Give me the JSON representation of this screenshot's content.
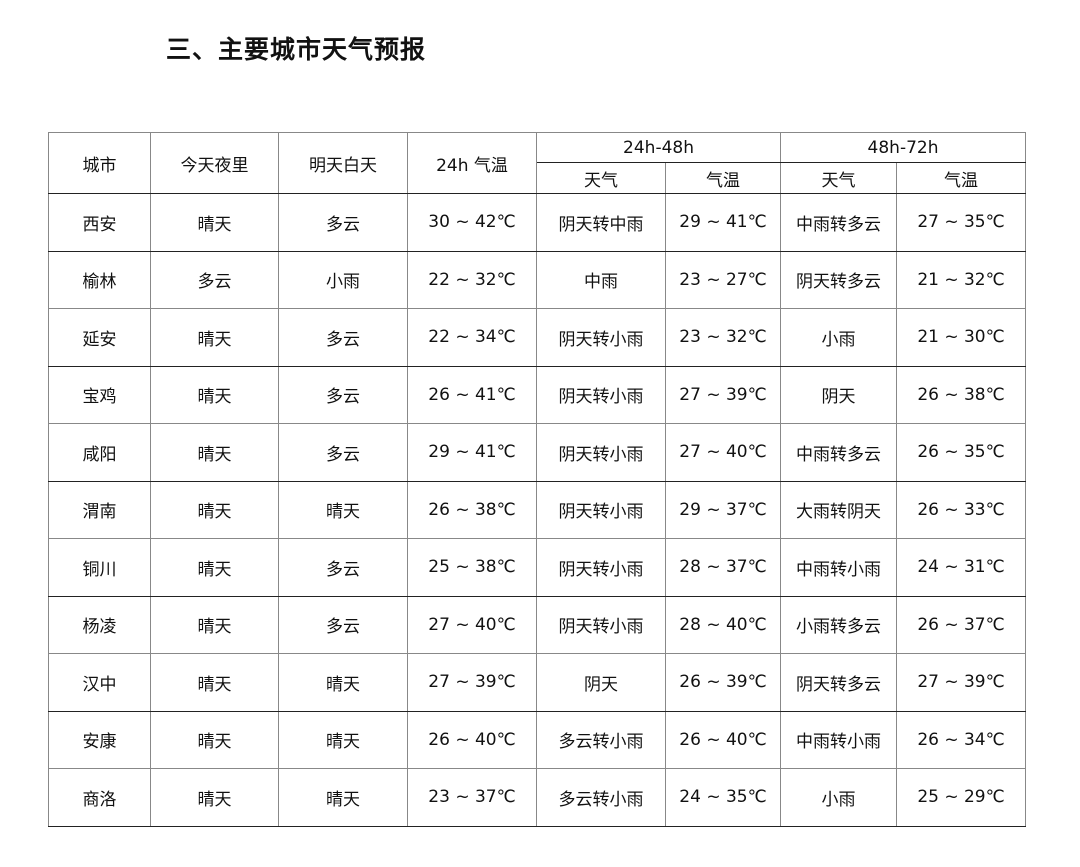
{
  "title": "三、主要城市天气预报",
  "table": {
    "headers": {
      "city": "城市",
      "tonight": "今天夜里",
      "tomorrow_day": "明天白天",
      "temp_24h": "24h 气温",
      "group_24_48": "24h-48h",
      "group_48_72": "48h-72h",
      "weather": "天气",
      "temp": "气温"
    },
    "rows": [
      [
        "西安",
        "晴天",
        "多云",
        "30 ~ 42℃",
        "阴天转中雨",
        "29 ~ 41℃",
        "中雨转多云",
        "27 ~ 35℃"
      ],
      [
        "榆林",
        "多云",
        "小雨",
        "22 ~ 32℃",
        "中雨",
        "23 ~ 27℃",
        "阴天转多云",
        "21 ~ 32℃"
      ],
      [
        "延安",
        "晴天",
        "多云",
        "22 ~ 34℃",
        "阴天转小雨",
        "23 ~ 32℃",
        "小雨",
        "21 ~ 30℃"
      ],
      [
        "宝鸡",
        "晴天",
        "多云",
        "26 ~ 41℃",
        "阴天转小雨",
        "27 ~ 39℃",
        "阴天",
        "26 ~ 38℃"
      ],
      [
        "咸阳",
        "晴天",
        "多云",
        "29 ~ 41℃",
        "阴天转小雨",
        "27 ~ 40℃",
        "中雨转多云",
        "26 ~ 35℃"
      ],
      [
        "渭南",
        "晴天",
        "晴天",
        "26 ~ 38℃",
        "阴天转小雨",
        "29 ~ 37℃",
        "大雨转阴天",
        "26 ~ 33℃"
      ],
      [
        "铜川",
        "晴天",
        "多云",
        "25 ~ 38℃",
        "阴天转小雨",
        "28 ~ 37℃",
        "中雨转小雨",
        "24 ~ 31℃"
      ],
      [
        "杨凌",
        "晴天",
        "多云",
        "27 ~ 40℃",
        "阴天转小雨",
        "28 ~ 40℃",
        "小雨转多云",
        "26 ~ 37℃"
      ],
      [
        "汉中",
        "晴天",
        "晴天",
        "27 ~ 39℃",
        "阴天",
        "26 ~ 39℃",
        "阴天转多云",
        "27 ~ 39℃"
      ],
      [
        "安康",
        "晴天",
        "晴天",
        "26 ~ 40℃",
        "多云转小雨",
        "26 ~ 40℃",
        "中雨转小雨",
        "26 ~ 34℃"
      ],
      [
        "商洛",
        "晴天",
        "晴天",
        "23 ~ 37℃",
        "多云转小雨",
        "24 ~ 35℃",
        "小雨",
        "25 ~ 29℃"
      ]
    ]
  }
}
